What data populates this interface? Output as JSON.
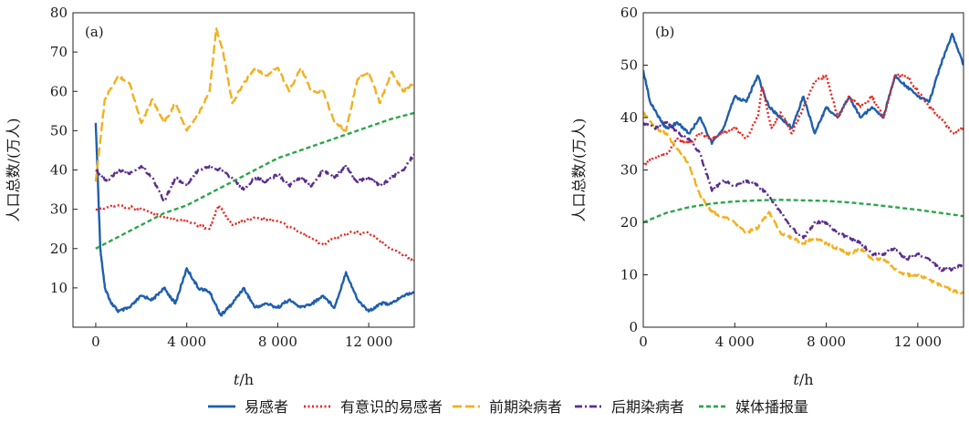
{
  "legend": [
    {
      "label": "易感者",
      "color": "#1f5fae",
      "dash": "solid"
    },
    {
      "label": "有意识的易感者",
      "color": "#e8251f",
      "dash": "dotted"
    },
    {
      "label": "前期染病者",
      "color": "#f2b01e",
      "dash": "longdash"
    },
    {
      "label": "后期染病者",
      "color": "#5b2d8e",
      "dash": "dashdot"
    },
    {
      "label": "媒体播报量",
      "color": "#2aa64a",
      "dash": "dash"
    }
  ],
  "chart_data": [
    {
      "type": "line",
      "panel_label": "(a)",
      "xlabel_italic": "t",
      "xlabel_unit": "/h",
      "ylabel": "人口总数/(万人)",
      "xlim": [
        -1000,
        14000
      ],
      "ylim": [
        0,
        80
      ],
      "xticks": [
        0,
        4000,
        8000,
        12000
      ],
      "xtick_labels": [
        "0",
        "4 000",
        "8 000",
        "12 000"
      ],
      "yticks": [
        10,
        20,
        30,
        40,
        50,
        60,
        70,
        80
      ],
      "ytick_labels": [
        "10",
        "20",
        "30",
        "40",
        "50",
        "60",
        "70",
        "80"
      ],
      "series": [
        {
          "name": "易感者",
          "color": "#1f5fae",
          "dash": "solid",
          "x": [
            0,
            200,
            400,
            700,
            1000,
            1500,
            2000,
            2500,
            3000,
            3500,
            4000,
            4500,
            5000,
            5500,
            6000,
            6500,
            7000,
            7500,
            8000,
            8500,
            9000,
            9500,
            10000,
            10500,
            11000,
            11500,
            12000,
            12500,
            13000,
            13500,
            14000
          ],
          "y": [
            52,
            20,
            10,
            6,
            4,
            5,
            8,
            7,
            10,
            6,
            15,
            10,
            9,
            3,
            6,
            10,
            5,
            6,
            5,
            7,
            5,
            6,
            8,
            5,
            14,
            7,
            4,
            6,
            6,
            8,
            9
          ]
        },
        {
          "name": "有意识的易感者",
          "color": "#e8251f",
          "dash": "dotted",
          "x": [
            0,
            1000,
            2000,
            3000,
            4000,
            5000,
            5400,
            6000,
            7000,
            8000,
            9000,
            10000,
            11000,
            12000,
            13000,
            14000
          ],
          "y": [
            30,
            31,
            30,
            28,
            27,
            25,
            31,
            26,
            28,
            27,
            24,
            21,
            24,
            24,
            20,
            17
          ]
        },
        {
          "name": "前期染病者",
          "color": "#f2b01e",
          "dash": "longdash",
          "x": [
            0,
            150,
            400,
            1000,
            1500,
            2000,
            2500,
            3000,
            3500,
            4000,
            4500,
            5000,
            5300,
            5600,
            6000,
            6500,
            7000,
            7500,
            8000,
            8500,
            9000,
            9500,
            10000,
            10500,
            11000,
            11500,
            12000,
            12500,
            13000,
            13500,
            14000
          ],
          "y": [
            37,
            45,
            58,
            64,
            62,
            52,
            58,
            52,
            57,
            50,
            54,
            60,
            76,
            70,
            57,
            62,
            66,
            64,
            66,
            60,
            66,
            60,
            60,
            52,
            50,
            63,
            65,
            57,
            65,
            60,
            62
          ]
        },
        {
          "name": "后期染病者",
          "color": "#5b2d8e",
          "dash": "dashdot",
          "x": [
            0,
            500,
            1000,
            1500,
            2000,
            2500,
            3000,
            3500,
            4000,
            4500,
            5000,
            5500,
            6000,
            6500,
            7000,
            7500,
            8000,
            8500,
            9000,
            9500,
            10000,
            10500,
            11000,
            11500,
            12000,
            12500,
            13000,
            13500,
            14000
          ],
          "y": [
            40,
            37,
            40,
            39,
            41,
            38,
            32,
            38,
            36,
            40,
            41,
            40,
            38,
            35,
            38,
            37,
            39,
            36,
            38,
            36,
            40,
            38,
            41,
            37,
            38,
            36,
            38,
            40,
            44
          ]
        },
        {
          "name": "媒体播报量",
          "color": "#2aa64a",
          "dash": "dash",
          "x": [
            0,
            1000,
            2000,
            3000,
            4000,
            5000,
            6000,
            7000,
            8000,
            9000,
            10000,
            11000,
            12000,
            13000,
            14000
          ],
          "y": [
            20,
            23,
            26,
            29,
            31,
            34,
            37,
            40,
            43,
            45,
            47,
            49,
            51,
            53,
            54.5
          ]
        }
      ]
    },
    {
      "type": "line",
      "panel_label": "(b)",
      "xlabel_italic": "t",
      "xlabel_unit": "/h",
      "ylabel": "人口总数/(万人)",
      "xlim": [
        0,
        14000
      ],
      "ylim": [
        0,
        60
      ],
      "xticks": [
        0,
        4000,
        8000,
        12000
      ],
      "xtick_labels": [
        "0",
        "4 000",
        "8 000",
        "12 000"
      ],
      "yticks": [
        0,
        10,
        20,
        30,
        40,
        50,
        60
      ],
      "ytick_labels": [
        "0",
        "10",
        "20",
        "30",
        "40",
        "50",
        "60"
      ],
      "series": [
        {
          "name": "易感者",
          "color": "#1f5fae",
          "dash": "solid",
          "x": [
            0,
            300,
            700,
            1000,
            1500,
            2000,
            2500,
            3000,
            3500,
            4000,
            4500,
            5000,
            5500,
            6000,
            6500,
            7000,
            7500,
            8000,
            8500,
            9000,
            9500,
            10000,
            10500,
            11000,
            11500,
            12000,
            12500,
            13000,
            13500,
            14000
          ],
          "y": [
            49,
            43,
            40,
            38,
            39,
            37,
            40,
            35,
            38,
            44,
            43,
            48,
            42,
            40,
            38,
            44,
            37,
            42,
            40,
            44,
            40,
            42,
            40,
            48,
            46,
            44,
            43,
            50,
            56,
            50
          ]
        },
        {
          "name": "有意识的易感者",
          "color": "#e8251f",
          "dash": "dotted",
          "x": [
            0,
            300,
            1000,
            1500,
            2000,
            2500,
            3000,
            3500,
            4000,
            4500,
            5000,
            5200,
            5600,
            6000,
            6500,
            7000,
            7500,
            8000,
            8500,
            9000,
            9500,
            10000,
            10500,
            11000,
            11500,
            12000,
            12500,
            13000,
            13500,
            14000
          ],
          "y": [
            31,
            32,
            33,
            36,
            35,
            37,
            36,
            37,
            38,
            36,
            40,
            46,
            38,
            41,
            37,
            42,
            47,
            48,
            40,
            44,
            42,
            44,
            40,
            48,
            48,
            45,
            42,
            40,
            37,
            38
          ]
        },
        {
          "name": "前期染病者",
          "color": "#f2b01e",
          "dash": "longdash",
          "x": [
            0,
            500,
            1000,
            1500,
            2000,
            2500,
            3000,
            3500,
            4000,
            4500,
            5000,
            5500,
            6000,
            6500,
            7000,
            7500,
            8000,
            8500,
            9000,
            9500,
            10000,
            10500,
            11000,
            11500,
            12000,
            12500,
            13000,
            13500,
            14000
          ],
          "y": [
            41,
            38,
            37,
            34,
            31,
            25,
            22,
            21,
            20,
            18,
            19,
            22,
            18,
            17,
            16,
            17,
            16,
            15,
            14,
            15,
            13,
            13,
            11,
            10,
            10,
            9,
            8,
            7,
            6.5
          ]
        },
        {
          "name": "后期染病者",
          "color": "#5b2d8e",
          "dash": "dashdot",
          "x": [
            0,
            500,
            1000,
            1500,
            2000,
            2500,
            3000,
            3500,
            4000,
            4500,
            5000,
            5500,
            6000,
            6500,
            7000,
            7500,
            8000,
            8500,
            9000,
            9500,
            10000,
            10500,
            11000,
            11500,
            12000,
            12500,
            13000,
            13500,
            14000
          ],
          "y": [
            39,
            38,
            39,
            37,
            36,
            33,
            26,
            28,
            27,
            28,
            27,
            25,
            22,
            19,
            17,
            20,
            20,
            18,
            17,
            16,
            14,
            14,
            15,
            13,
            14,
            13,
            11,
            11,
            12
          ]
        },
        {
          "name": "媒体播报量",
          "color": "#2aa64a",
          "dash": "dash",
          "x": [
            0,
            1000,
            2000,
            3000,
            4000,
            5000,
            6000,
            7000,
            8000,
            9000,
            10000,
            11000,
            12000,
            13000,
            14000
          ],
          "y": [
            20,
            21.8,
            22.9,
            23.6,
            24,
            24.2,
            24.3,
            24.2,
            24.1,
            23.8,
            23.4,
            22.9,
            22.4,
            21.8,
            21.2
          ]
        }
      ]
    }
  ]
}
